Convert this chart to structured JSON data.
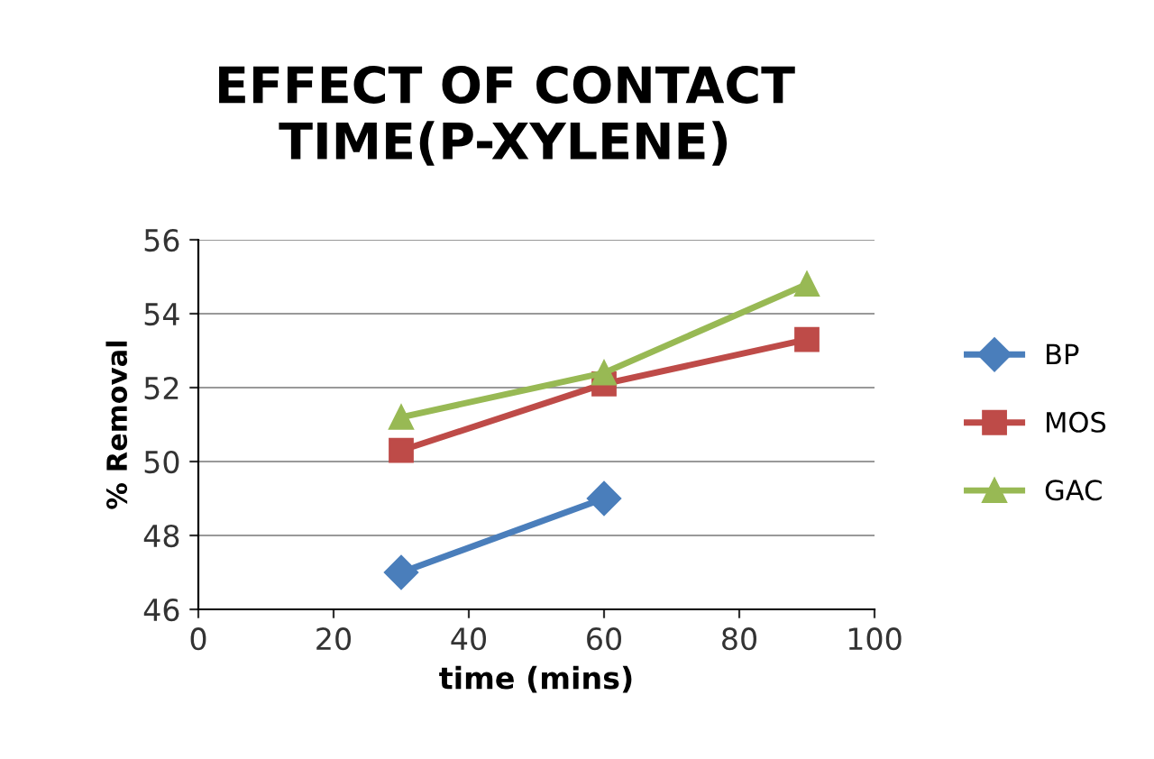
{
  "chart_data": {
    "type": "line",
    "title": "EFFECT OF CONTACT TIME(P-XYLENE)",
    "xlabel": "time (mins)",
    "ylabel": "% Removal",
    "x": [
      30,
      60,
      90
    ],
    "series": [
      {
        "name": "BP",
        "color": "#4a7ebb",
        "values": [
          47,
          49,
          null
        ],
        "marker": "diamond"
      },
      {
        "name": "MOS",
        "color": "#be4b48",
        "values": [
          50.3,
          52.1,
          53.3
        ],
        "marker": "square"
      },
      {
        "name": "GAC",
        "color": "#98b954",
        "values": [
          51.2,
          52.4,
          54.8
        ],
        "marker": "triangle"
      }
    ],
    "xlim": [
      0,
      100
    ],
    "xticks": [
      0,
      20,
      40,
      60,
      80,
      100
    ],
    "ylim": [
      46,
      56
    ],
    "yticks": [
      46,
      48,
      50,
      52,
      54,
      56
    ],
    "grid": "y",
    "legend": "right",
    "line_style": "solid"
  }
}
